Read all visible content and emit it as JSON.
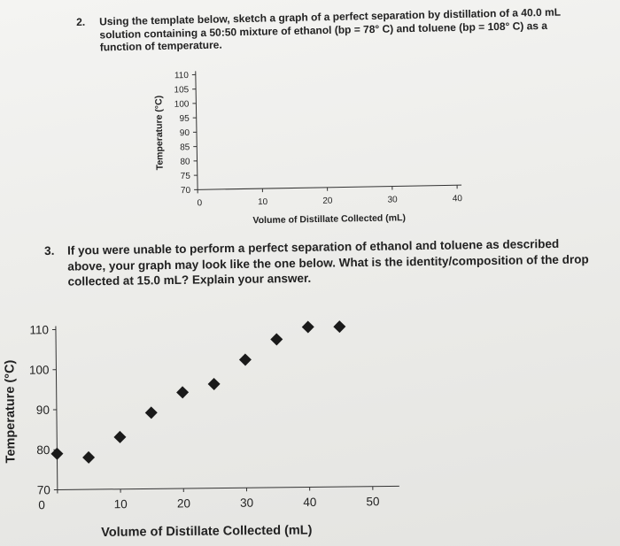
{
  "question2": {
    "number": "2.",
    "text": "Using the template below, sketch a graph of a perfect separation by distillation of a 40.0 mL solution containing a 50:50 mixture of ethanol (bp = 78° C) and toluene (bp = 108° C) as a function of temperature."
  },
  "question3": {
    "number": "3.",
    "text": "If you were unable to perform a perfect separation of ethanol and toluene as described above, your graph may look like the one below. What is the identity/composition of the drop collected at 15.0 mL? Explain your answer."
  },
  "chart_data": [
    {
      "type": "scatter",
      "title": "",
      "xlabel": "Volume of Distillate Collected (mL)",
      "ylabel": "Temperature (°C)",
      "x_ticks": [
        "0",
        "10",
        "20",
        "30",
        "40"
      ],
      "y_ticks": [
        "70",
        "75",
        "80",
        "85",
        "90",
        "95",
        "100",
        "105",
        "110"
      ],
      "xlim": [
        0,
        40
      ],
      "ylim": [
        70,
        110
      ],
      "points": []
    },
    {
      "type": "scatter",
      "title": "",
      "xlabel": "Volume of Distillate Collected (mL)",
      "ylabel": "Temperature (°C)",
      "x_ticks": [
        "0",
        "10",
        "20",
        "30",
        "40",
        "50"
      ],
      "y_ticks": [
        "70",
        "80",
        "90",
        "100",
        "110"
      ],
      "xlim": [
        0,
        50
      ],
      "ylim": [
        70,
        110
      ],
      "points": [
        {
          "x": 0,
          "y": 79
        },
        {
          "x": 5,
          "y": 78
        },
        {
          "x": 10,
          "y": 83
        },
        {
          "x": 15,
          "y": 89
        },
        {
          "x": 20,
          "y": 94
        },
        {
          "x": 25,
          "y": 96
        },
        {
          "x": 30,
          "y": 102
        },
        {
          "x": 35,
          "y": 107
        },
        {
          "x": 40,
          "y": 110
        },
        {
          "x": 45,
          "y": 110
        }
      ]
    }
  ]
}
